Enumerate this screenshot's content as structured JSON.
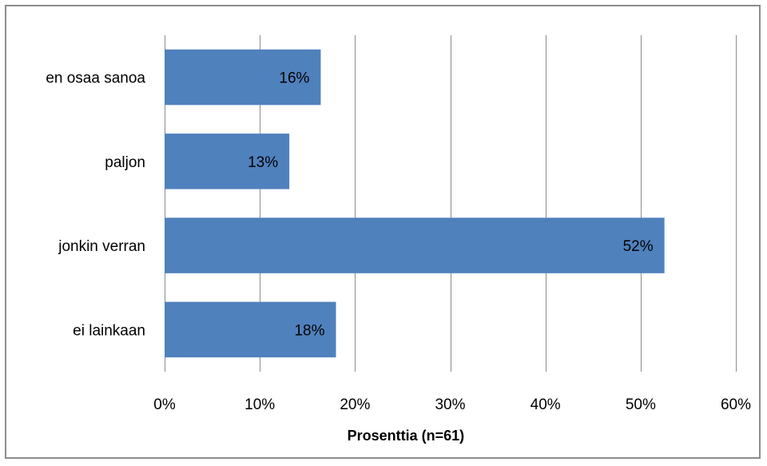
{
  "chart_data": {
    "type": "bar",
    "orientation": "horizontal",
    "categories": [
      "en osaa sanoa",
      "paljon",
      "jonkin verran",
      "ei lainkaan"
    ],
    "values": [
      16.4,
      13.1,
      52.5,
      18.0
    ],
    "data_labels": [
      "16%",
      "13%",
      "52%",
      "18%"
    ],
    "xlabel": "Prosenttia (n=61)",
    "xlim": [
      0,
      60
    ],
    "x_ticks": [
      0,
      10,
      20,
      30,
      40,
      50,
      60
    ],
    "x_tick_labels": [
      "0%",
      "10%",
      "20%",
      "30%",
      "40%",
      "50%",
      "60%"
    ],
    "grid": "vertical",
    "legend": "none",
    "bar_color": "#4f81bd",
    "border_color": "#8c8c8c",
    "grid_color": "#8c8c8c"
  }
}
